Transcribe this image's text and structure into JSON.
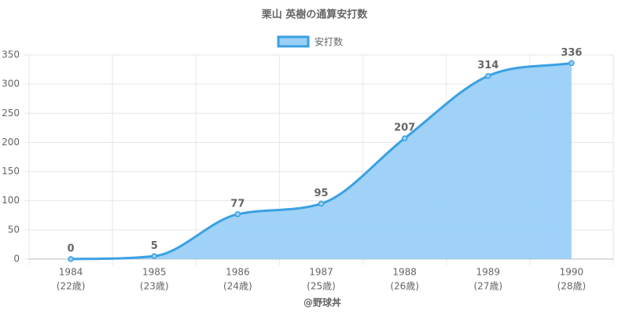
{
  "chart_data": {
    "type": "line",
    "title": "栗山 英樹の通算安打数",
    "categories": [
      [
        "1984",
        "(22歳)"
      ],
      [
        "1985",
        "(23歳)"
      ],
      [
        "1986",
        "(24歳)"
      ],
      [
        "1987",
        "(25歳)"
      ],
      [
        "1988",
        "(26歳)"
      ],
      [
        "1989",
        "(27歳)"
      ],
      [
        "1990",
        "(28歳)"
      ]
    ],
    "series": [
      {
        "name": "安打数",
        "color": "#3ba0e3",
        "fill": "#9ad0f5",
        "values": [
          0,
          5,
          77,
          95,
          207,
          314,
          336
        ]
      }
    ],
    "ylim": [
      0,
      350
    ],
    "yticks": [
      0,
      50,
      100,
      150,
      200,
      250,
      300,
      350
    ],
    "x_label": "@野球丼",
    "grid": true,
    "legend": "top"
  }
}
